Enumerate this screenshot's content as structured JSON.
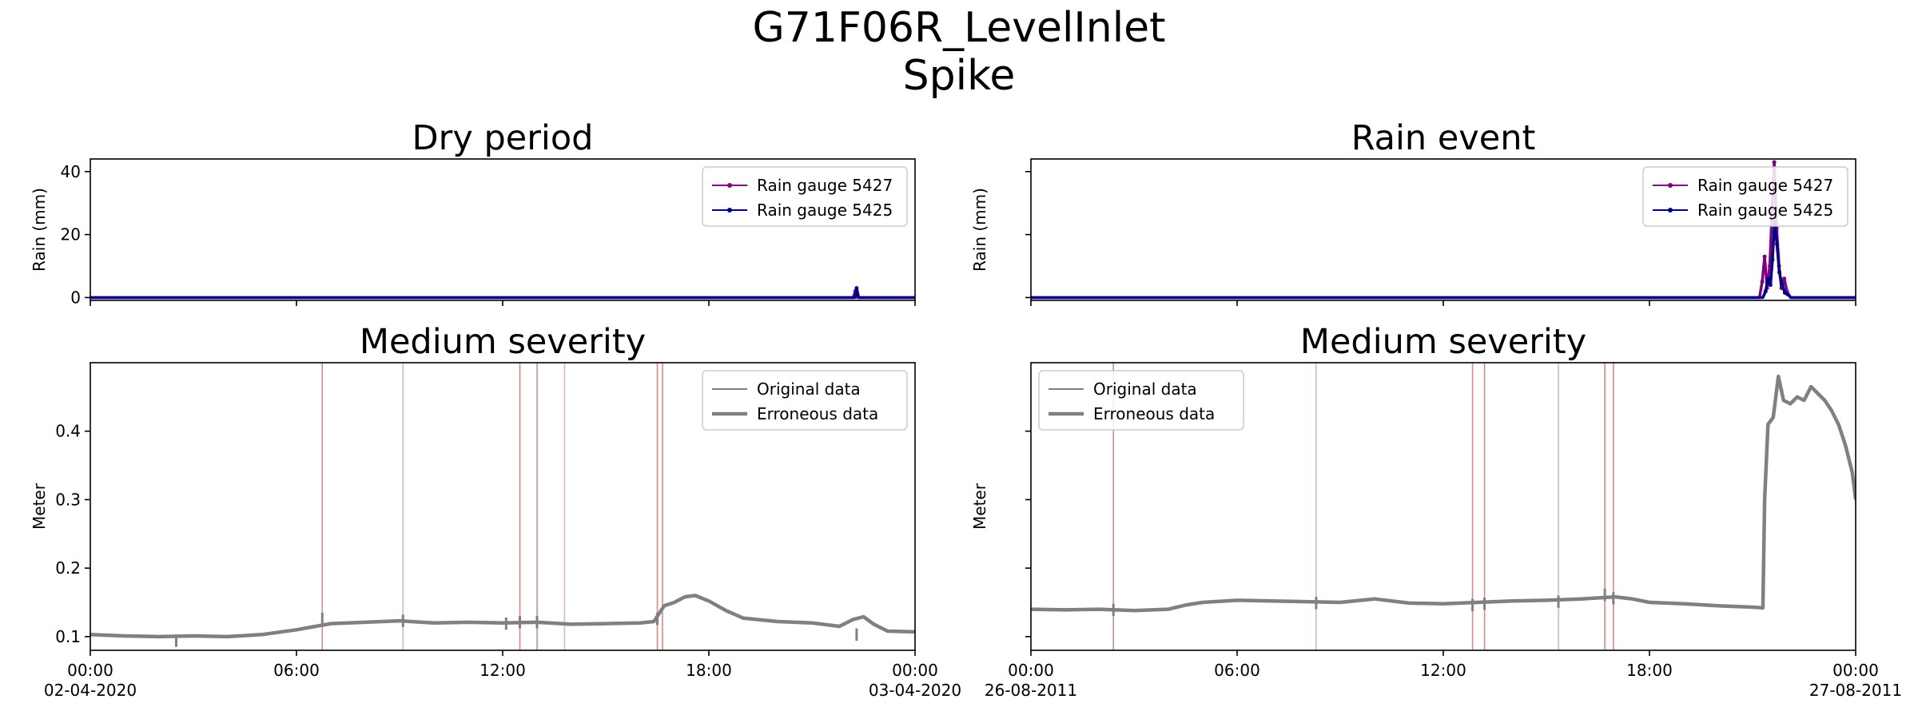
{
  "figure": {
    "title_line1": "G71F06R_LevelInlet",
    "title_line2": "Spike"
  },
  "colors": {
    "gauge_a": "#800080",
    "gauge_b": "#00008b",
    "level": "#808080",
    "spike_line": "#d98a8a",
    "faint_line": "#d9b8b8"
  },
  "chart_data": [
    {
      "id": "rain-dry",
      "type": "line",
      "title": "Dry period",
      "xlabel": "",
      "ylabel": "Rain (mm)",
      "xlim": [
        0,
        24
      ],
      "ylim": [
        -0.9,
        44
      ],
      "yticks": [
        0,
        20,
        40
      ],
      "ytick_labels": [
        "0",
        "20",
        "40"
      ],
      "show_xtick_labels": false,
      "legend_position": "upper right",
      "series": [
        {
          "name": "Rain gauge 5427",
          "color": "#800080",
          "x": [
            0,
            22.2,
            22.26,
            22.32,
            24
          ],
          "y": [
            0,
            0,
            2.0,
            0,
            0
          ]
        },
        {
          "name": "Rain gauge 5425",
          "color": "#00008b",
          "x": [
            0,
            22.25,
            22.3,
            22.36,
            24
          ],
          "y": [
            0,
            0,
            3.0,
            0,
            0
          ]
        }
      ]
    },
    {
      "id": "rain-event",
      "type": "line",
      "title": "Rain event",
      "xlabel": "",
      "ylabel": "Rain (mm)",
      "xlim": [
        0,
        24
      ],
      "ylim": [
        -0.9,
        44
      ],
      "yticks": [
        0,
        20,
        40
      ],
      "ytick_labels": [
        "",
        "",
        ""
      ],
      "show_xtick_labels": false,
      "legend_position": "upper right",
      "series": [
        {
          "name": "Rain gauge 5427",
          "color": "#800080",
          "x": [
            0,
            21.2,
            21.28,
            21.35,
            21.42,
            21.5,
            21.57,
            21.63,
            21.7,
            21.77,
            21.84,
            21.92,
            22.0,
            22.1,
            24
          ],
          "y": [
            0,
            0,
            5,
            13,
            3,
            10,
            28,
            43,
            22,
            10,
            3,
            6,
            2,
            0,
            0
          ]
        },
        {
          "name": "Rain gauge 5425",
          "color": "#00008b",
          "x": [
            0,
            21.3,
            21.38,
            21.45,
            21.52,
            21.58,
            21.64,
            21.71,
            21.78,
            21.86,
            21.94,
            22.02,
            22.12,
            24
          ],
          "y": [
            0,
            0,
            2,
            6,
            4,
            12,
            24,
            17,
            8,
            4,
            1.5,
            1,
            0,
            0
          ]
        }
      ]
    },
    {
      "id": "level-dry",
      "type": "line",
      "title": "Medium severity",
      "xlabel": "",
      "ylabel": "Meter",
      "xlim": [
        0,
        24
      ],
      "ylim": [
        0.08,
        0.5
      ],
      "yticks": [
        0.1,
        0.2,
        0.3,
        0.4
      ],
      "ytick_labels": [
        "0.1",
        "0.2",
        "0.3",
        "0.4"
      ],
      "xticks": [
        0,
        6,
        12,
        18,
        24
      ],
      "xtick_labels": [
        "00:00",
        "06:00",
        "12:00",
        "18:00",
        "00:00"
      ],
      "xtick_dates": [
        "02-04-2020",
        "",
        "",
        "",
        "03-04-2020"
      ],
      "legend_position": "upper right",
      "legend": [
        "Original data",
        "Erroneous data"
      ],
      "spike_lines": [
        6.75,
        9.1,
        12.5,
        13.0,
        13.8,
        16.5,
        16.65
      ],
      "spikes": [
        [
          2.5,
          0.103
        ],
        [
          6.75,
          0.135
        ],
        [
          9.1,
          0.132
        ],
        [
          12.1,
          0.128
        ],
        [
          12.5,
          0.13
        ],
        [
          13.0,
          0.13
        ],
        [
          16.5,
          0.135
        ],
        [
          22.3,
          0.112
        ]
      ],
      "series": [
        {
          "name": "Erroneous data",
          "color": "#808080",
          "x": [
            0,
            1,
            2,
            3,
            4,
            5,
            6,
            7,
            8,
            9,
            10,
            11,
            12,
            13,
            14,
            15,
            16,
            16.4,
            16.7,
            17.0,
            17.3,
            17.6,
            18.0,
            18.5,
            19,
            20,
            21,
            21.8,
            22.2,
            22.5,
            22.8,
            23.2,
            24
          ],
          "y": [
            0.103,
            0.101,
            0.1,
            0.101,
            0.1,
            0.103,
            0.11,
            0.119,
            0.121,
            0.123,
            0.12,
            0.121,
            0.12,
            0.121,
            0.118,
            0.119,
            0.12,
            0.122,
            0.145,
            0.15,
            0.158,
            0.16,
            0.152,
            0.138,
            0.127,
            0.122,
            0.12,
            0.115,
            0.125,
            0.129,
            0.118,
            0.108,
            0.107
          ]
        }
      ]
    },
    {
      "id": "level-event",
      "type": "line",
      "title": "Medium severity",
      "xlabel": "",
      "ylabel": "Meter",
      "xlim": [
        0,
        24
      ],
      "ylim": [
        0.08,
        0.5
      ],
      "yticks": [
        0.1,
        0.2,
        0.3,
        0.4
      ],
      "ytick_labels": [
        "",
        "",
        "",
        ""
      ],
      "xticks": [
        0,
        6,
        12,
        18,
        24
      ],
      "xtick_labels": [
        "00:00",
        "06:00",
        "12:00",
        "18:00",
        "00:00"
      ],
      "xtick_dates": [
        "26-08-2011",
        "",
        "",
        "",
        "27-08-2011"
      ],
      "legend_position": "upper left",
      "legend": [
        "Original data",
        "Erroneous data"
      ],
      "spike_lines": [
        2.4,
        8.3,
        12.85,
        13.2,
        15.35,
        16.7,
        16.95
      ],
      "spikes": [
        [
          2.4,
          0.148
        ],
        [
          8.3,
          0.158
        ],
        [
          12.85,
          0.155
        ],
        [
          13.2,
          0.157
        ],
        [
          15.35,
          0.16
        ],
        [
          16.7,
          0.17
        ],
        [
          16.95,
          0.165
        ]
      ],
      "series": [
        {
          "name": "Erroneous data",
          "color": "#808080",
          "x": [
            0,
            1,
            2,
            3,
            4,
            4.5,
            5,
            6,
            7,
            8,
            9,
            10,
            11,
            12,
            13,
            14,
            15,
            16,
            17,
            17.5,
            18,
            19,
            20,
            21,
            21.3,
            21.35,
            21.45,
            21.6,
            21.75,
            21.9,
            22.1,
            22.3,
            22.5,
            22.7,
            22.9,
            23.1,
            23.3,
            23.5,
            23.7,
            23.9,
            24
          ],
          "y": [
            0.14,
            0.139,
            0.14,
            0.138,
            0.14,
            0.146,
            0.15,
            0.153,
            0.152,
            0.151,
            0.15,
            0.155,
            0.149,
            0.148,
            0.15,
            0.152,
            0.153,
            0.155,
            0.158,
            0.155,
            0.15,
            0.148,
            0.145,
            0.143,
            0.142,
            0.3,
            0.41,
            0.42,
            0.48,
            0.445,
            0.44,
            0.45,
            0.445,
            0.465,
            0.455,
            0.445,
            0.43,
            0.41,
            0.38,
            0.34,
            0.3
          ]
        }
      ]
    }
  ]
}
